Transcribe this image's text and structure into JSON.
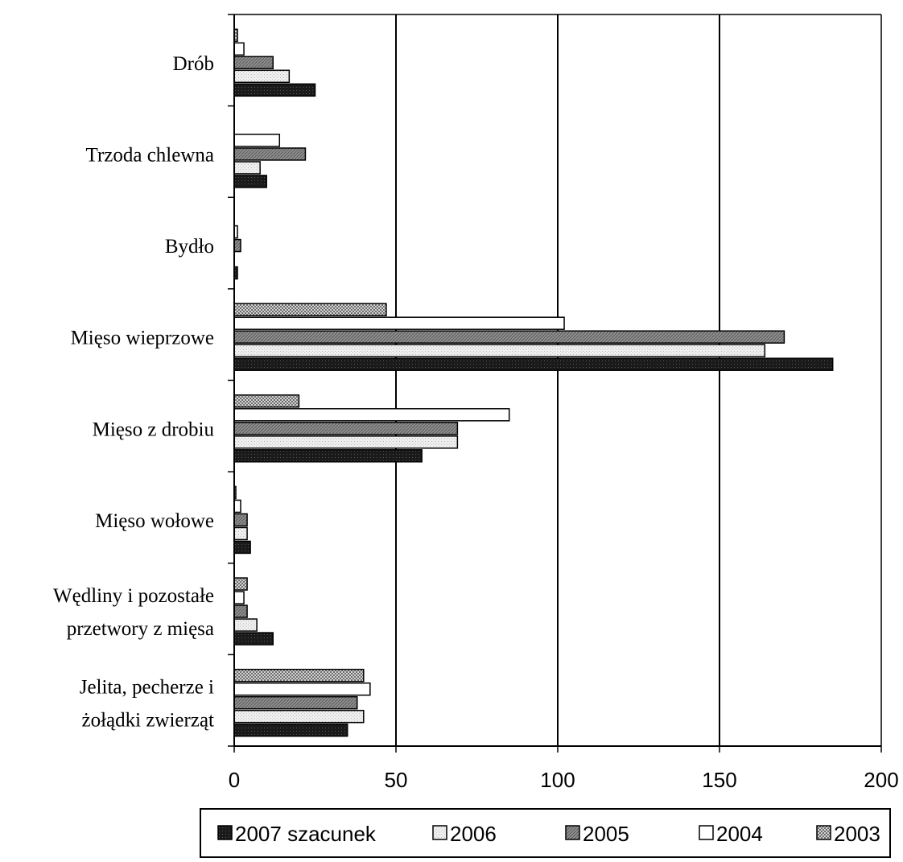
{
  "chart_data": {
    "type": "bar",
    "orientation": "horizontal",
    "title": "",
    "xlabel": "",
    "ylabel": "",
    "xlim": [
      0,
      200
    ],
    "xticks": [
      0,
      50,
      100,
      150,
      200
    ],
    "grid": "vertical major gridlines",
    "legend_position": "bottom",
    "categories": [
      {
        "id": "drob",
        "lines": [
          "Drób"
        ]
      },
      {
        "id": "trzoda",
        "lines": [
          "Trzoda chlewna"
        ]
      },
      {
        "id": "bydlo",
        "lines": [
          "Bydło"
        ]
      },
      {
        "id": "mieso-wieprzowe",
        "lines": [
          "Mięso wieprzowe"
        ]
      },
      {
        "id": "mieso-z-drobiu",
        "lines": [
          "Mięso z drobiu"
        ]
      },
      {
        "id": "mieso-wolowe",
        "lines": [
          "Mięso wołowe"
        ]
      },
      {
        "id": "wedliny",
        "lines": [
          "Wędliny i pozostałe",
          "przetwory z mięsa"
        ]
      },
      {
        "id": "jelita",
        "lines": [
          "Jelita, pecherze i",
          "żołądki zwierząt"
        ]
      }
    ],
    "series": [
      {
        "name": "2003",
        "pattern": "dotted",
        "values": [
          1,
          0,
          0,
          47,
          20,
          0.5,
          4,
          40
        ]
      },
      {
        "name": "2004",
        "pattern": "white",
        "values": [
          3,
          14,
          1,
          102,
          85,
          2,
          3,
          42
        ]
      },
      {
        "name": "2005",
        "pattern": "gray",
        "values": [
          12,
          22,
          2,
          170,
          69,
          4,
          4,
          38
        ]
      },
      {
        "name": "2006",
        "pattern": "light",
        "values": [
          17,
          8,
          0,
          164,
          69,
          4,
          7,
          40
        ]
      },
      {
        "name": "2007 szacunek",
        "pattern": "dark",
        "values": [
          25,
          10,
          1,
          185,
          58,
          5,
          12,
          35
        ]
      }
    ],
    "legend_order": [
      "2007 szacunek",
      "2006",
      "2005",
      "2004",
      "2003"
    ],
    "colors": {
      "dark": "#1a1a1a",
      "light": "#e8e8e8",
      "gray": "#8c8c8c",
      "white": "#ffffff",
      "dotted": "#bdbdbd",
      "axis": "#000000",
      "grid": "#000000"
    }
  }
}
